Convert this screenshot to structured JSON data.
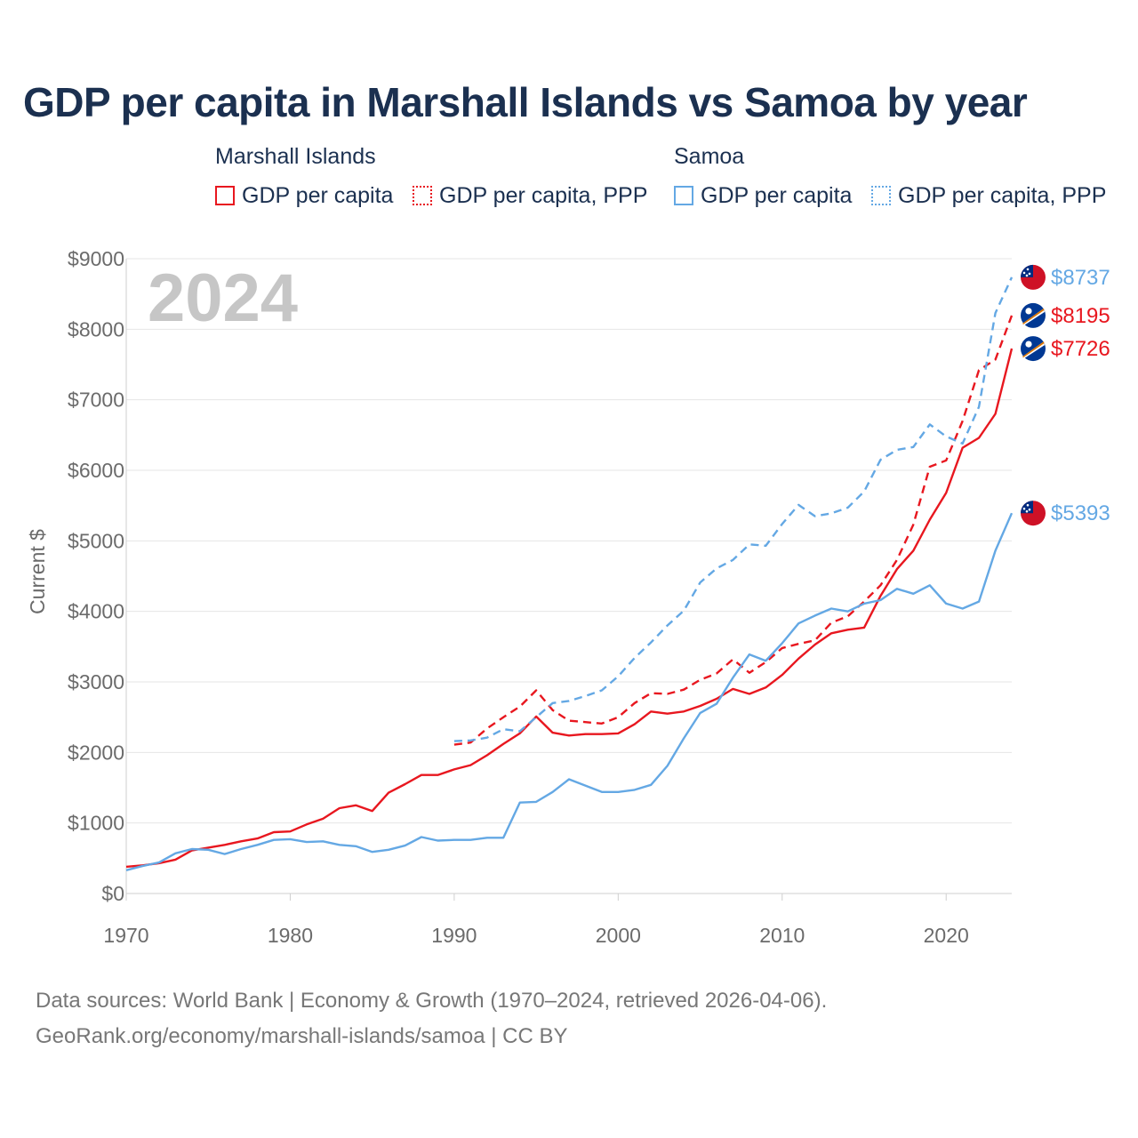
{
  "title": "GDP per capita in Marshall Islands vs Samoa by year",
  "legend": {
    "groups": [
      {
        "title": "Marshall Islands",
        "items": [
          "GDP per capita",
          "GDP per capita, PPP"
        ]
      },
      {
        "title": "Samoa",
        "items": [
          "GDP per capita",
          "GDP per capita, PPP"
        ]
      }
    ]
  },
  "watermark_year": "2024",
  "sources": [
    "Data sources: World Bank | Economy & Growth (1970–2024, retrieved 2026-04-06).",
    "GeoRank.org/economy/marshall-islands/samoa | CC BY"
  ],
  "colors": {
    "marshall": "#e8171f",
    "samoa": "#64a8e4",
    "grid": "#e6e6e6",
    "axis_text": "#6b6b6b"
  },
  "chart_data": {
    "type": "line",
    "title": "GDP per capita in Marshall Islands vs Samoa by year",
    "xlabel": "",
    "ylabel": "Current $",
    "xlim": [
      1970,
      2024
    ],
    "ylim": [
      0,
      9000
    ],
    "x_ticks": [
      1970,
      1980,
      1990,
      2000,
      2010,
      2020
    ],
    "y_ticks": [
      0,
      1000,
      2000,
      3000,
      4000,
      5000,
      6000,
      7000,
      8000,
      9000
    ],
    "y_tick_labels": [
      "$0",
      "$1000",
      "$2000",
      "$3000",
      "$4000",
      "$5000",
      "$6000",
      "$7000",
      "$8000",
      "$9000"
    ],
    "grid": true,
    "series": [
      {
        "name": "Marshall Islands — GDP per capita",
        "country": "marshall",
        "style": "solid",
        "x_start": 1970,
        "values": [
          380,
          400,
          430,
          480,
          610,
          650,
          690,
          740,
          780,
          870,
          880,
          980,
          1060,
          1210,
          1250,
          1170,
          1430,
          1550,
          1680,
          1680,
          1760,
          1820,
          1960,
          2120,
          2270,
          2510,
          2280,
          2240,
          2260,
          2260,
          2270,
          2400,
          2580,
          2550,
          2580,
          2660,
          2760,
          2900,
          2830,
          2920,
          3100,
          3330,
          3530,
          3690,
          3740,
          3770,
          4220,
          4600,
          4860,
          5300,
          5680,
          6320,
          6460,
          6800,
          7726
        ],
        "end_label": "$7726"
      },
      {
        "name": "Marshall Islands — GDP per capita, PPP",
        "country": "marshall",
        "style": "dashed",
        "x_start": 1990,
        "values": [
          2110,
          2140,
          2340,
          2500,
          2650,
          2880,
          2600,
          2450,
          2430,
          2410,
          2500,
          2700,
          2840,
          2830,
          2890,
          3030,
          3120,
          3320,
          3130,
          3280,
          3480,
          3540,
          3590,
          3840,
          3930,
          4140,
          4370,
          4730,
          5230,
          6050,
          6140,
          6700,
          7420,
          7570,
          8195
        ],
        "end_label": "$8195"
      },
      {
        "name": "Samoa — GDP per capita",
        "country": "samoa",
        "style": "solid",
        "x_start": 1970,
        "values": [
          330,
          390,
          440,
          570,
          630,
          620,
          560,
          630,
          690,
          760,
          770,
          730,
          740,
          690,
          670,
          590,
          620,
          680,
          800,
          750,
          760,
          760,
          790,
          790,
          1290,
          1300,
          1440,
          1620,
          1530,
          1440,
          1440,
          1470,
          1540,
          1810,
          2200,
          2560,
          2690,
          3060,
          3390,
          3300,
          3550,
          3830,
          3940,
          4040,
          4000,
          4110,
          4160,
          4320,
          4250,
          4370,
          4110,
          4040,
          4140,
          4860,
          5393
        ],
        "end_label": "$5393"
      },
      {
        "name": "Samoa — GDP per capita, PPP",
        "country": "samoa",
        "style": "dashed",
        "x_start": 1990,
        "values": [
          2160,
          2170,
          2210,
          2330,
          2300,
          2500,
          2700,
          2730,
          2800,
          2880,
          3080,
          3340,
          3560,
          3800,
          4010,
          4410,
          4610,
          4730,
          4950,
          4930,
          5240,
          5510,
          5350,
          5390,
          5470,
          5700,
          6150,
          6290,
          6330,
          6650,
          6480,
          6380,
          6900,
          8230,
          8737
        ],
        "end_label": "$8737"
      }
    ]
  }
}
